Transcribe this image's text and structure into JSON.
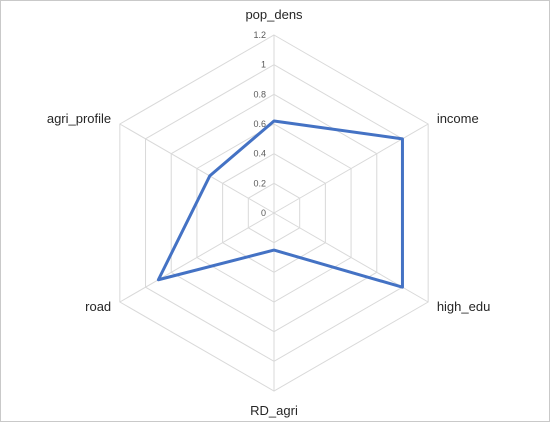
{
  "chart_data": {
    "type": "radar",
    "title": "",
    "categories": [
      "pop_dens",
      "income",
      "high_edu",
      "RD_agri",
      "road",
      "agri_profile"
    ],
    "series": [
      {
        "values": [
          0.62,
          1.0,
          1.0,
          0.25,
          0.9,
          0.5
        ]
      }
    ],
    "rlim": [
      0,
      1.2
    ],
    "ticks": [
      "0",
      "0.2",
      "0.4",
      "0.6",
      "0.8",
      "1",
      "1.2"
    ],
    "grid": true,
    "legend": "none",
    "colors": {
      "series": "#4472c4",
      "grid": "#d9d9d9"
    }
  }
}
